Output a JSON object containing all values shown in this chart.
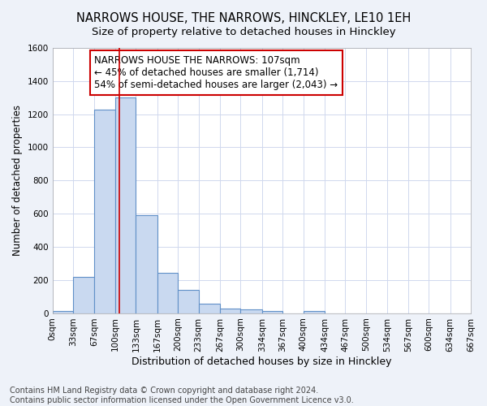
{
  "title": "NARROWS HOUSE, THE NARROWS, HINCKLEY, LE10 1EH",
  "subtitle": "Size of property relative to detached houses in Hinckley",
  "xlabel": "Distribution of detached houses by size in Hinckley",
  "ylabel": "Number of detached properties",
  "bin_edges": [
    0,
    33,
    67,
    100,
    133,
    167,
    200,
    233,
    267,
    300,
    334,
    367,
    400,
    434,
    467,
    500,
    534,
    567,
    600,
    634,
    667
  ],
  "bar_heights": [
    15,
    220,
    1230,
    1300,
    590,
    245,
    140,
    55,
    25,
    20,
    15,
    0,
    15,
    0,
    0,
    0,
    0,
    0,
    0,
    0
  ],
  "bar_color": "#c9d9f0",
  "bar_edge_color": "#6090c8",
  "bar_edge_width": 0.8,
  "red_line_x": 107,
  "red_line_color": "#cc0000",
  "annotation_line1": "NARROWS HOUSE THE NARROWS: 107sqm",
  "annotation_line2": "← 45% of detached houses are smaller (1,714)",
  "annotation_line3": "54% of semi-detached houses are larger (2,043) →",
  "ylim": [
    0,
    1600
  ],
  "yticks": [
    0,
    200,
    400,
    600,
    800,
    1000,
    1200,
    1400,
    1600
  ],
  "grid_color": "#d0d8ee",
  "background_color": "#eef2f9",
  "plot_bg_color": "#ffffff",
  "footnote": "Contains HM Land Registry data © Crown copyright and database right 2024.\nContains public sector information licensed under the Open Government Licence v3.0.",
  "title_fontsize": 10.5,
  "subtitle_fontsize": 9.5,
  "xlabel_fontsize": 9,
  "ylabel_fontsize": 8.5,
  "tick_fontsize": 7.5,
  "annotation_fontsize": 8.5,
  "footnote_fontsize": 7
}
